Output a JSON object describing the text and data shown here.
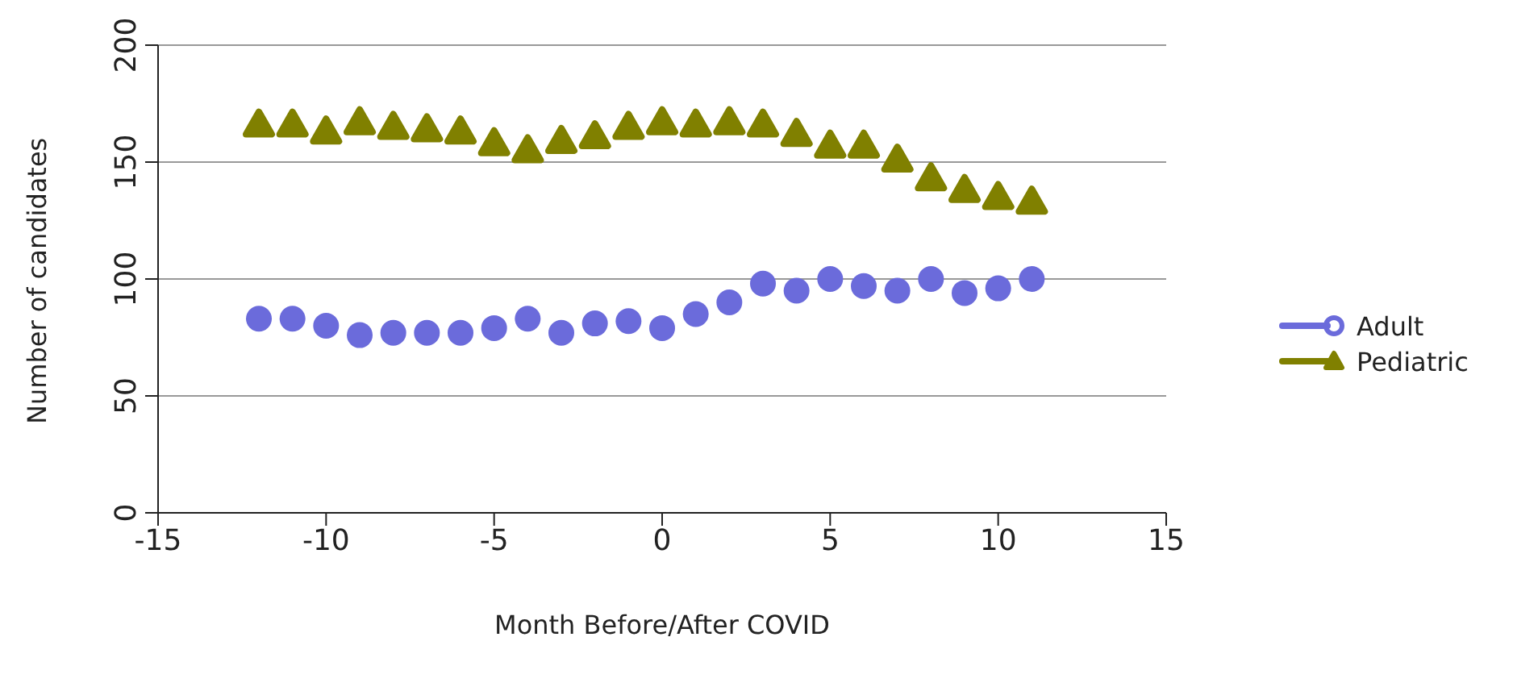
{
  "chart_data": {
    "type": "scatter",
    "xlabel": "Month Before/After COVID",
    "ylabel": "Number of candidates",
    "x": [
      -12,
      -11,
      -10,
      -9,
      -8,
      -7,
      -6,
      -5,
      -4,
      -3,
      -2,
      -1,
      0,
      1,
      2,
      3,
      4,
      5,
      6,
      7,
      8,
      9,
      10,
      11
    ],
    "series": [
      {
        "name": "Adult",
        "color": "#6b6bdb",
        "marker": "circle",
        "values": [
          83,
          83,
          80,
          76,
          77,
          77,
          77,
          79,
          83,
          77,
          81,
          82,
          79,
          85,
          90,
          98,
          95,
          100,
          97,
          95,
          100,
          94,
          96,
          100
        ]
      },
      {
        "name": "Pediatric",
        "color": "#808000",
        "marker": "triangle",
        "values": [
          166,
          166,
          163,
          167,
          165,
          164,
          163,
          158,
          155,
          159,
          161,
          165,
          167,
          166,
          167,
          166,
          162,
          157,
          157,
          151,
          143,
          138,
          135,
          133
        ]
      }
    ],
    "xlim": [
      -15,
      15
    ],
    "xticks": [
      -15,
      -10,
      -5,
      0,
      5,
      10,
      15
    ],
    "ylim": [
      0,
      200
    ],
    "yticks": [
      0,
      50,
      100,
      150,
      200
    ],
    "grid": "y",
    "legend": "right"
  }
}
